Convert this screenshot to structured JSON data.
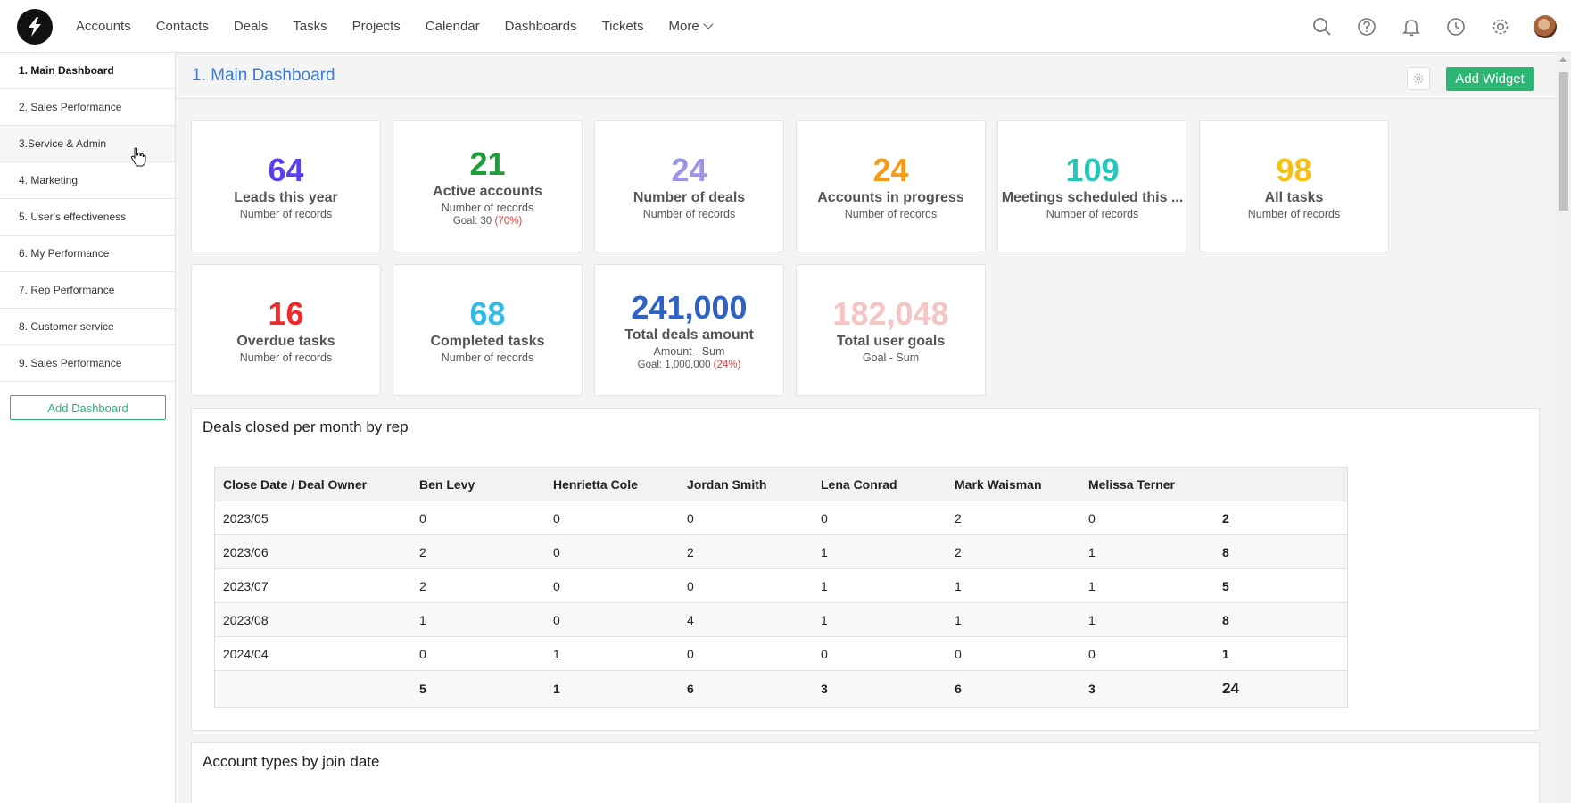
{
  "nav": {
    "items": [
      "Accounts",
      "Contacts",
      "Deals",
      "Tasks",
      "Projects",
      "Calendar",
      "Dashboards",
      "Tickets"
    ],
    "more_label": "More"
  },
  "icons": {
    "logo": "logo-icon",
    "search": "search-icon",
    "help": "help-icon",
    "notifications": "bell-icon",
    "history": "clock-icon",
    "settings": "gear-icon"
  },
  "sidebar": {
    "items": [
      "1. Main Dashboard",
      "2. Sales Performance",
      "3.Service & Admin",
      "4. Marketing",
      "5. User's effectiveness",
      "6. My Performance",
      "7. Rep Performance",
      "8. Customer service",
      "9. Sales Performance"
    ],
    "add_label": "Add Dashboard"
  },
  "header": {
    "title": "1. Main Dashboard",
    "add_widget_label": "Add Widget"
  },
  "kpis": [
    {
      "value": "64",
      "label": "Leads this year",
      "sub": "Number of records",
      "color": "#5a3ff0"
    },
    {
      "value": "21",
      "label": "Active accounts",
      "sub": "Number of records",
      "goal": "Goal: 30",
      "pct": "(70%)",
      "color": "#1e9e3a"
    },
    {
      "value": "24",
      "label": "Number of deals",
      "sub": "Number of records",
      "color": "#9b95e3"
    },
    {
      "value": "24",
      "label": "Accounts in progress",
      "sub": "Number of records",
      "color": "#f49b1a"
    },
    {
      "value": "109",
      "label": "Meetings scheduled this ...",
      "sub": "Number of records",
      "color": "#26c6b8"
    },
    {
      "value": "98",
      "label": "All tasks",
      "sub": "Number of records",
      "color": "#f5c014"
    },
    {
      "value": "16",
      "label": "Overdue tasks",
      "sub": "Number of records",
      "color": "#ef2a2a"
    },
    {
      "value": "68",
      "label": "Completed tasks",
      "sub": "Number of records",
      "color": "#35b9e6"
    },
    {
      "value": "241,000",
      "label": "Total deals amount",
      "sub": "Amount - Sum",
      "goal": "Goal: 1,000,000",
      "pct": "(24%)",
      "color": "#2e62c8"
    },
    {
      "value": "182,048",
      "label": "Total user goals",
      "sub": "Goal - Sum",
      "color": "#f7c4c4"
    }
  ],
  "deals_table": {
    "title": "Deals closed per month by rep",
    "headers": [
      "Close Date / Deal Owner",
      "Ben Levy",
      "Henrietta Cole",
      "Jordan Smith",
      "Lena Conrad",
      "Mark Waisman",
      "Melissa Terner",
      ""
    ],
    "rows": [
      [
        "2023/05",
        "0",
        "0",
        "0",
        "0",
        "2",
        "0",
        "2"
      ],
      [
        "2023/06",
        "2",
        "0",
        "2",
        "1",
        "2",
        "1",
        "8"
      ],
      [
        "2023/07",
        "2",
        "0",
        "0",
        "1",
        "1",
        "1",
        "5"
      ],
      [
        "2023/08",
        "1",
        "0",
        "4",
        "1",
        "1",
        "1",
        "8"
      ],
      [
        "2024/04",
        "0",
        "1",
        "0",
        "0",
        "0",
        "0",
        "1"
      ]
    ],
    "totals": [
      "",
      "5",
      "1",
      "6",
      "3",
      "6",
      "3",
      "24"
    ]
  },
  "second_panel": {
    "title": "Account types by join date"
  }
}
